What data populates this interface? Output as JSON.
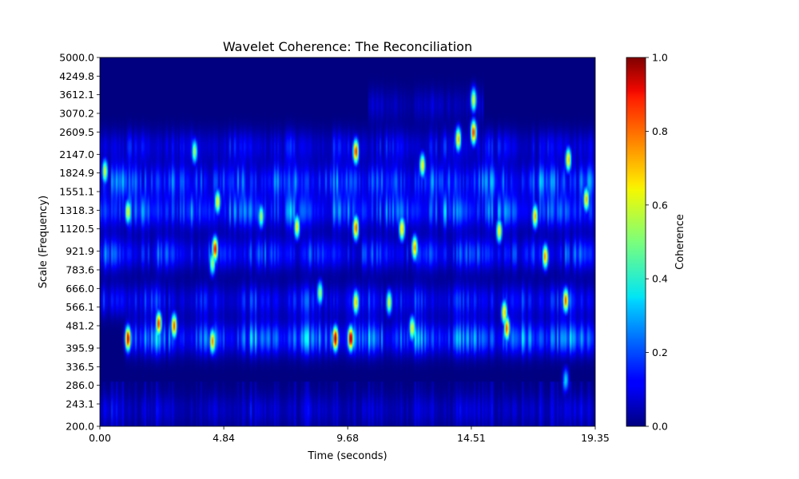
{
  "chart_data": {
    "type": "heatmap",
    "title": "Wavelet Coherence: The Reconciliation",
    "xlabel": "Time (seconds)",
    "ylabel": "Scale (Frequency)",
    "xlim": [
      0,
      19.35
    ],
    "ylim": [
      200,
      5000
    ],
    "y_scale": "log",
    "x_ticks": [
      0.0,
      4.84,
      9.68,
      14.51,
      19.35
    ],
    "x_tick_labels": [
      "0.00",
      "4.84",
      "9.68",
      "14.51",
      "19.35"
    ],
    "y_ticks": [
      200.0,
      243.1,
      286.0,
      336.5,
      395.9,
      481.2,
      566.1,
      666.0,
      783.6,
      921.9,
      1120.5,
      1318.3,
      1551.1,
      1824.9,
      2147.0,
      2609.5,
      3070.2,
      3612.1,
      4249.8,
      5000.0
    ],
    "y_tick_labels": [
      "200.0",
      "243.1",
      "286.0",
      "336.5",
      "395.9",
      "481.2",
      "566.1",
      "666.0",
      "783.6",
      "921.9",
      "1120.5",
      "1318.3",
      "1551.1",
      "1824.9",
      "2147.0",
      "2609.5",
      "3070.2",
      "3612.1",
      "4249.8",
      "5000.0"
    ],
    "colorbar": {
      "label": "Coherence",
      "range": [
        0,
        1
      ],
      "ticks": [
        0.0,
        0.2,
        0.4,
        0.6,
        0.8,
        1.0
      ],
      "tick_labels": [
        "0.0",
        "0.2",
        "0.4",
        "0.6",
        "0.8",
        "1.0"
      ],
      "colormap": "jet"
    },
    "bands": [
      {
        "scale": 430,
        "level": 0.42,
        "t_start": 1.0,
        "t_end": 19.35
      },
      {
        "scale": 1300,
        "level": 0.36,
        "t_start": 0.0,
        "t_end": 19.35
      },
      {
        "scale": 1700,
        "level": 0.34,
        "t_start": 0.0,
        "t_end": 19.35
      },
      {
        "scale": 900,
        "level": 0.3,
        "t_start": 0.0,
        "t_end": 19.35
      },
      {
        "scale": 600,
        "level": 0.25,
        "t_start": 0.0,
        "t_end": 19.35
      },
      {
        "scale": 2300,
        "level": 0.2,
        "t_start": 0.0,
        "t_end": 19.35
      },
      {
        "scale": 3300,
        "level": 0.12,
        "t_start": 10.5,
        "t_end": 15.0
      },
      {
        "scale": 230,
        "level": 0.12,
        "t_start": 0.0,
        "t_end": 19.35
      }
    ],
    "hotspots": [
      {
        "t": 1.1,
        "scale": 430,
        "value": 0.95
      },
      {
        "t": 2.3,
        "scale": 490,
        "value": 0.85
      },
      {
        "t": 2.9,
        "scale": 480,
        "value": 0.8
      },
      {
        "t": 4.4,
        "scale": 420,
        "value": 0.75
      },
      {
        "t": 4.6,
        "scale": 1420,
        "value": 0.65
      },
      {
        "t": 4.5,
        "scale": 940,
        "value": 0.9
      },
      {
        "t": 4.4,
        "scale": 830,
        "value": 0.55
      },
      {
        "t": 9.2,
        "scale": 430,
        "value": 1.0
      },
      {
        "t": 9.8,
        "scale": 430,
        "value": 1.0
      },
      {
        "t": 10.0,
        "scale": 2200,
        "value": 0.85
      },
      {
        "t": 10.0,
        "scale": 1130,
        "value": 0.8
      },
      {
        "t": 10.0,
        "scale": 590,
        "value": 0.7
      },
      {
        "t": 7.7,
        "scale": 1140,
        "value": 0.65
      },
      {
        "t": 11.8,
        "scale": 1120,
        "value": 0.7
      },
      {
        "t": 12.3,
        "scale": 950,
        "value": 0.75
      },
      {
        "t": 12.6,
        "scale": 1950,
        "value": 0.65
      },
      {
        "t": 12.2,
        "scale": 470,
        "value": 0.65
      },
      {
        "t": 14.0,
        "scale": 2450,
        "value": 0.7
      },
      {
        "t": 14.6,
        "scale": 2600,
        "value": 0.85
      },
      {
        "t": 14.6,
        "scale": 3450,
        "value": 0.6
      },
      {
        "t": 15.6,
        "scale": 1100,
        "value": 0.65
      },
      {
        "t": 15.8,
        "scale": 540,
        "value": 0.7
      },
      {
        "t": 15.9,
        "scale": 470,
        "value": 0.8
      },
      {
        "t": 17.0,
        "scale": 1250,
        "value": 0.7
      },
      {
        "t": 17.4,
        "scale": 880,
        "value": 0.75
      },
      {
        "t": 18.2,
        "scale": 600,
        "value": 0.8
      },
      {
        "t": 18.3,
        "scale": 2050,
        "value": 0.7
      },
      {
        "t": 19.0,
        "scale": 1450,
        "value": 0.7
      },
      {
        "t": 0.2,
        "scale": 1850,
        "value": 0.6
      },
      {
        "t": 3.7,
        "scale": 2200,
        "value": 0.55
      },
      {
        "t": 1.1,
        "scale": 1300,
        "value": 0.65
      },
      {
        "t": 6.3,
        "scale": 1250,
        "value": 0.55
      },
      {
        "t": 8.6,
        "scale": 640,
        "value": 0.55
      },
      {
        "t": 11.3,
        "scale": 590,
        "value": 0.6
      },
      {
        "t": 18.2,
        "scale": 300,
        "value": 0.35
      }
    ]
  }
}
